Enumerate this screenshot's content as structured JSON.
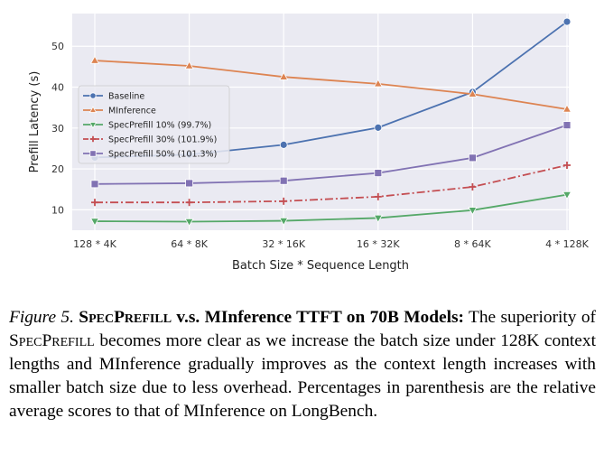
{
  "chart_data": {
    "type": "line",
    "title": "",
    "xlabel": "Batch Size * Sequence Length",
    "ylabel": "Prefill Latency (s)",
    "categories": [
      "128 * 4K",
      "64 * 8K",
      "32 * 16K",
      "16 * 32K",
      "8 * 64K",
      "4 * 128K"
    ],
    "ylim": [
      5,
      58
    ],
    "yticks": [
      10,
      20,
      30,
      40,
      50
    ],
    "grid": true,
    "legend_position": "center-left",
    "series": [
      {
        "name": "Baseline",
        "color": "#4c72b0",
        "marker": "circle",
        "dash": "solid",
        "values": [
          22.8,
          23.5,
          25.9,
          30.1,
          38.8,
          56.0
        ]
      },
      {
        "name": "MInference",
        "color": "#dd8452",
        "marker": "triangle-up",
        "dash": "solid",
        "values": [
          46.5,
          45.2,
          42.5,
          40.8,
          38.3,
          34.6
        ]
      },
      {
        "name": "SpecPrefill 10% (99.7%)",
        "color": "#55a868",
        "marker": "triangle-down",
        "dash": "solid",
        "values": [
          7.2,
          7.1,
          7.3,
          8.0,
          9.9,
          13.7
        ]
      },
      {
        "name": "SpecPrefill 30% (101.9%)",
        "color": "#c44e52",
        "marker": "cross",
        "dash": "dashdot",
        "values": [
          11.8,
          11.8,
          12.1,
          13.2,
          15.6,
          20.9
        ]
      },
      {
        "name": "SpecPrefill 50% (101.3%)",
        "color": "#8172b3",
        "marker": "square",
        "dash": "solid",
        "values": [
          16.3,
          16.5,
          17.1,
          19.0,
          22.7,
          30.7
        ]
      }
    ]
  },
  "caption": {
    "label": "Figure 5.",
    "title_parts": [
      {
        "text": "SpecPrefill",
        "smallcaps": true
      },
      {
        "text": " v.s. MInference TTFT on 70B Models:",
        "smallcaps": false
      }
    ],
    "body_parts": [
      {
        "text": "The superiority of ",
        "smallcaps": false
      },
      {
        "text": "SpecPrefill",
        "smallcaps": true
      },
      {
        "text": " becomes more clear as we increase the batch size under 128K context lengths and MInference gradually improves as the context length increases with smaller batch size due to less overhead. Percentages in parenthesis are the relative average scores to that of MInference on LongBench.",
        "smallcaps": false
      }
    ]
  }
}
